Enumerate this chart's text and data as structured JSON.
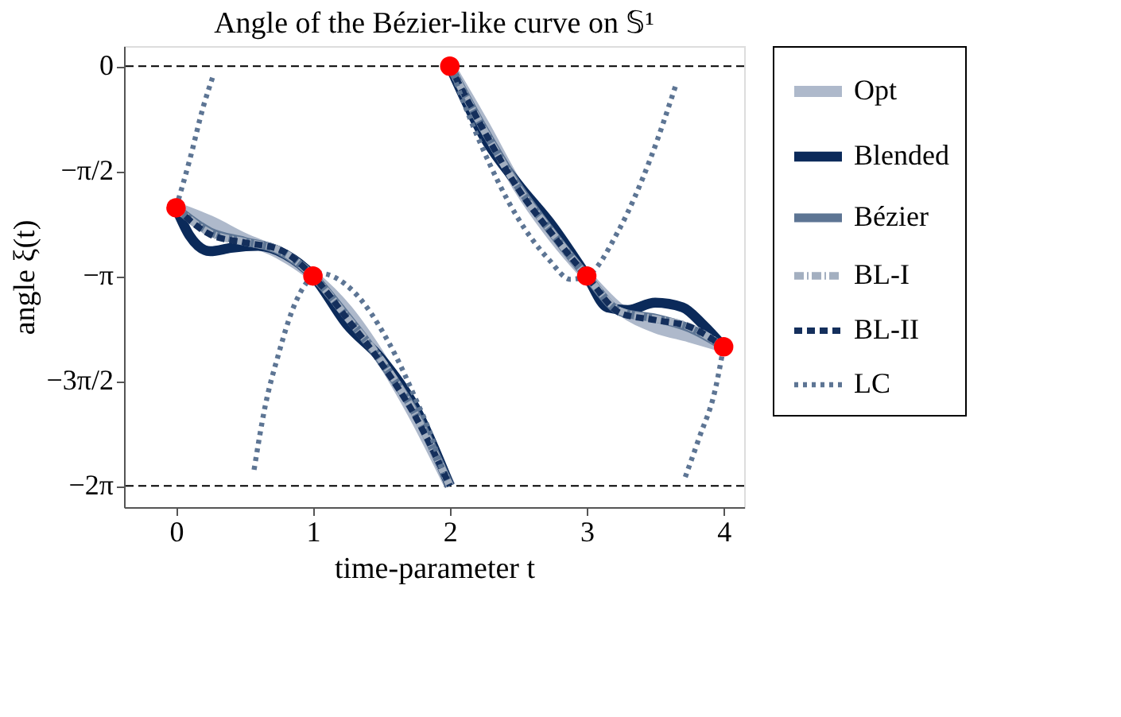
{
  "chart_data": {
    "type": "line",
    "title": "Angle of the Bézier-like curve on 𝕊¹",
    "xlabel": "time-parameter t",
    "ylabel": "angle ξ(t)",
    "xlim": [
      -0.38,
      4.15
    ],
    "ylim": [
      -6.6,
      0.3
    ],
    "xticks": [
      0,
      1,
      2,
      3,
      4
    ],
    "yticks": [
      0,
      {
        "value": -1.5708,
        "label": "−π/2"
      },
      {
        "value": -3.1416,
        "label": "−π"
      },
      {
        "value": -4.7124,
        "label": "−3π/2"
      },
      {
        "value": -6.2832,
        "label": "−2π"
      }
    ],
    "grid": false,
    "legend": "right",
    "ref_lines": [
      {
        "axis": "y",
        "value": 0,
        "label": null,
        "color": "#000000",
        "line_style": "dashed"
      },
      {
        "axis": "y",
        "value": -6.2832,
        "label": null,
        "color": "#000000",
        "line_style": "dashed"
      }
    ],
    "series": [
      {
        "name": "Opt",
        "color": "#aeb9cb",
        "line_style": "solid",
        "x": [
          0,
          0.25,
          0.5,
          0.75,
          1,
          1.25,
          1.5,
          1.75,
          2,
          null,
          2,
          2.25,
          2.5,
          2.75,
          3,
          3.25,
          3.5,
          3.75,
          4
        ],
        "values": [
          -2.12,
          -2.32,
          -2.58,
          -2.8,
          -3.14,
          -3.65,
          -4.38,
          -5.27,
          -6.28,
          null,
          0,
          -0.88,
          -1.81,
          -2.54,
          -3.14,
          -3.65,
          -3.91,
          -4.05,
          -4.2
        ]
      },
      {
        "name": "Blended",
        "color": "#0b2a5a",
        "line_style": "solid",
        "x": [
          0,
          0.1,
          0.25,
          0.4,
          0.6,
          0.8,
          1,
          1.25,
          1.5,
          1.75,
          2,
          null,
          2,
          2.25,
          2.5,
          2.75,
          3,
          3.15,
          3.3,
          3.5,
          3.7,
          3.85,
          4
        ],
        "values": [
          -2.12,
          -2.54,
          -2.77,
          -2.72,
          -2.69,
          -2.82,
          -3.14,
          -3.87,
          -4.38,
          -5.12,
          -6.28,
          null,
          0,
          -1.06,
          -1.77,
          -2.39,
          -3.14,
          -3.61,
          -3.65,
          -3.54,
          -3.61,
          -3.87,
          -4.2
        ]
      },
      {
        "name": "Bézier",
        "color": "#5d7594",
        "line_style": "solid",
        "x": [
          0,
          0.25,
          0.5,
          0.75,
          1,
          1.25,
          1.5,
          1.75,
          2,
          null,
          2,
          2.25,
          2.5,
          2.75,
          3,
          3.25,
          3.5,
          3.75,
          4
        ],
        "values": [
          -2.12,
          -2.48,
          -2.62,
          -2.76,
          -3.14,
          -3.75,
          -4.42,
          -5.2,
          -6.28,
          null,
          0,
          -0.95,
          -1.8,
          -2.5,
          -3.14,
          -3.68,
          -3.77,
          -3.92,
          -4.2
        ]
      },
      {
        "name": "BL-I",
        "color": "#a3afc0",
        "line_style": "dashdot",
        "x": [
          0,
          0.25,
          0.5,
          0.75,
          1,
          1.25,
          1.5,
          1.75,
          2,
          null,
          2,
          2.25,
          2.5,
          2.75,
          3,
          3.25,
          3.5,
          3.75,
          4
        ],
        "values": [
          -2.12,
          -2.5,
          -2.63,
          -2.75,
          -3.14,
          -3.76,
          -4.4,
          -5.22,
          -6.28,
          null,
          0,
          -0.96,
          -1.82,
          -2.5,
          -3.14,
          -3.67,
          -3.78,
          -3.9,
          -4.2
        ]
      },
      {
        "name": "BL-II",
        "color": "#142f5c",
        "line_style": "dashed",
        "x": [
          0,
          0.25,
          0.5,
          0.75,
          1,
          1.25,
          1.5,
          1.75,
          2,
          null,
          2,
          2.25,
          2.5,
          2.75,
          3,
          3.25,
          3.5,
          3.75,
          4
        ],
        "values": [
          -2.12,
          -2.52,
          -2.64,
          -2.74,
          -3.14,
          -3.78,
          -4.45,
          -5.25,
          -6.28,
          null,
          0,
          -0.97,
          -1.84,
          -2.52,
          -3.14,
          -3.7,
          -3.8,
          -3.9,
          -4.2
        ]
      },
      {
        "name": "LC",
        "color": "#5d7594",
        "line_style": "dotted",
        "x": [
          0,
          0.1,
          0.2,
          0.27,
          null,
          0.57,
          0.65,
          0.75,
          0.85,
          0.95,
          1,
          1.05,
          1.29,
          1.56,
          1.75,
          1.87,
          1.95,
          null,
          2,
          2.22,
          2.49,
          2.73,
          2.88,
          3,
          3.23,
          3.47,
          3.65,
          null,
          3.72,
          3.82,
          3.94,
          4
        ],
        "values": [
          -2.12,
          -1.4,
          -0.6,
          -0.15,
          null,
          -6.04,
          -5.1,
          -4.3,
          -3.65,
          -3.25,
          -3.14,
          -3.1,
          -3.36,
          -4.16,
          -4.98,
          -5.57,
          -6.1,
          null,
          0,
          -1.14,
          -2.25,
          -2.91,
          -3.19,
          -3.14,
          -2.47,
          -1.36,
          -0.29,
          null,
          -6.15,
          -5.57,
          -4.83,
          -4.2
        ]
      },
      {
        "type": "scatter",
        "color": "#ff0000",
        "marker": "circle",
        "x": [
          0,
          1,
          2,
          3,
          4
        ],
        "values": [
          -2.12,
          -3.14,
          0,
          -3.14,
          -4.2
        ]
      }
    ]
  }
}
